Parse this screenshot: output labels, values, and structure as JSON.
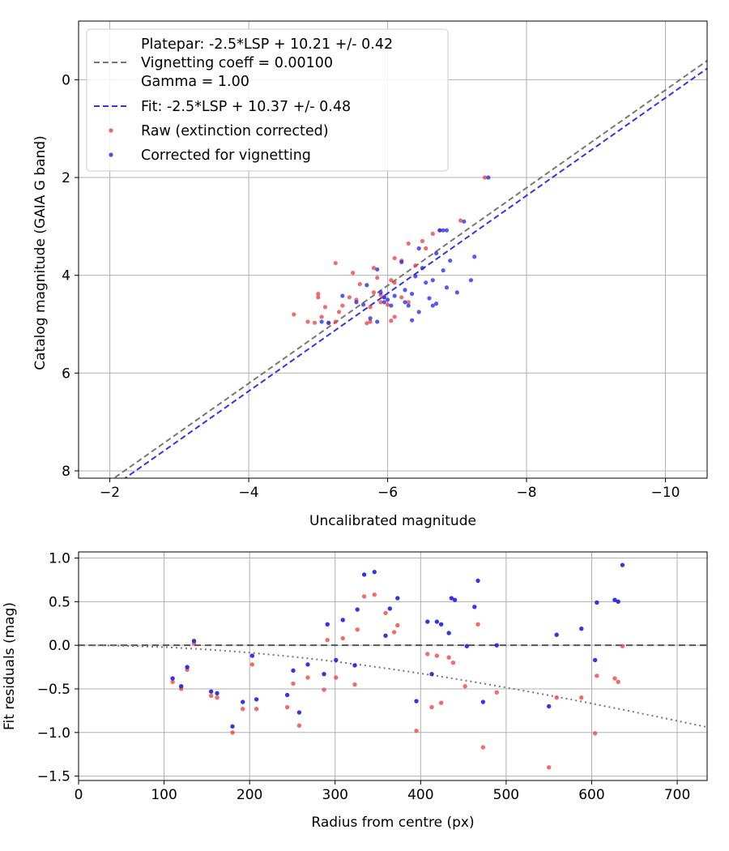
{
  "chart_data": [
    {
      "type": "scatter",
      "xlabel": "Uncalibrated magnitude",
      "ylabel": "Catalog magnitude (GAIA G band)",
      "xlim": [
        -1.55,
        -10.6
      ],
      "ylim": [
        8.15,
        -1.2
      ],
      "x_ticks": [
        -2,
        -4,
        -6,
        -8,
        -10
      ],
      "x_tick_labels": [
        "−2",
        "−4",
        "−6",
        "−8",
        "−10"
      ],
      "y_ticks": [
        0,
        2,
        4,
        6,
        8
      ],
      "y_tick_labels": [
        "0",
        "2",
        "4",
        "6",
        "8"
      ],
      "grid": true,
      "legend": {
        "placement": "top-left",
        "entries": [
          "Platepar: -2.5*LSP + 10.21 +/- 0.42",
          "Vignetting coeff = 0.00100",
          "Gamma = 1.00",
          "Fit: -2.5*LSP + 10.37 +/- 0.48",
          "Raw (extinction corrected)",
          "Corrected for vignetting"
        ]
      },
      "lines": [
        {
          "name": "Platepar",
          "style": "dashed",
          "color": "#777777",
          "intercept": 10.21,
          "slope": 1.0
        },
        {
          "name": "Fit",
          "style": "dashed",
          "color": "#3333e6",
          "intercept": 10.37,
          "slope": 1.0
        }
      ],
      "series": [
        {
          "name": "Raw (extinction corrected)",
          "color": "#ee3b3b",
          "points": [
            [
              -4.65,
              4.8
            ],
            [
              -4.95,
              4.97
            ],
            [
              -5.05,
              4.85
            ],
            [
              -5.1,
              4.65
            ],
            [
              -5.15,
              4.98
            ],
            [
              -5.25,
              4.95
            ],
            [
              -5.3,
              4.75
            ],
            [
              -5.35,
              4.62
            ],
            [
              -5.25,
              3.75
            ],
            [
              -5.5,
              3.95
            ],
            [
              -5.6,
              4.18
            ],
            [
              -5.45,
              4.45
            ],
            [
              -5.55,
              4.5
            ],
            [
              -5.7,
              4.98
            ],
            [
              -5.75,
              4.95
            ],
            [
              -5.75,
              4.65
            ],
            [
              -5.8,
              4.35
            ],
            [
              -5.9,
              4.4
            ],
            [
              -5.9,
              4.55
            ],
            [
              -5.95,
              4.45
            ],
            [
              -6.0,
              4.6
            ],
            [
              -5.85,
              4.05
            ],
            [
              -5.8,
              3.85
            ],
            [
              -6.05,
              4.1
            ],
            [
              -6.1,
              4.15
            ],
            [
              -6.1,
              4.85
            ],
            [
              -6.05,
              4.93
            ],
            [
              -6.2,
              3.7
            ],
            [
              -6.1,
              3.65
            ],
            [
              -6.2,
              4.45
            ],
            [
              -6.3,
              4.55
            ],
            [
              -6.3,
              3.35
            ],
            [
              -6.4,
              3.8
            ],
            [
              -6.55,
              3.45
            ],
            [
              -6.5,
              3.3
            ],
            [
              -6.65,
              3.15
            ],
            [
              -6.75,
              3.08
            ],
            [
              -7.05,
              2.88
            ],
            [
              -7.4,
              2.0
            ],
            [
              -5.0,
              4.45
            ],
            [
              -5.0,
              4.38
            ],
            [
              -4.85,
              4.95
            ]
          ]
        },
        {
          "name": "Corrected for vignetting",
          "color": "#2222ee",
          "points": [
            [
              -5.05,
              4.95
            ],
            [
              -5.15,
              4.97
            ],
            [
              -5.35,
              4.42
            ],
            [
              -5.55,
              4.55
            ],
            [
              -5.65,
              4.6
            ],
            [
              -5.75,
              4.88
            ],
            [
              -5.85,
              4.95
            ],
            [
              -5.85,
              3.88
            ],
            [
              -5.7,
              4.2
            ],
            [
              -5.9,
              4.35
            ],
            [
              -5.95,
              4.45
            ],
            [
              -6.0,
              4.5
            ],
            [
              -5.95,
              4.55
            ],
            [
              -6.05,
              4.62
            ],
            [
              -6.1,
              4.42
            ],
            [
              -6.2,
              3.73
            ],
            [
              -6.25,
              4.3
            ],
            [
              -6.25,
              4.55
            ],
            [
              -6.3,
              4.62
            ],
            [
              -6.35,
              4.38
            ],
            [
              -6.35,
              4.92
            ],
            [
              -6.4,
              4.02
            ],
            [
              -6.45,
              4.75
            ],
            [
              -6.5,
              3.85
            ],
            [
              -6.55,
              4.15
            ],
            [
              -6.6,
              4.47
            ],
            [
              -6.65,
              4.62
            ],
            [
              -6.7,
              4.58
            ],
            [
              -6.7,
              3.55
            ],
            [
              -6.75,
              3.08
            ],
            [
              -6.8,
              3.9
            ],
            [
              -6.8,
              3.08
            ],
            [
              -6.85,
              3.08
            ],
            [
              -6.85,
              4.25
            ],
            [
              -7.0,
              4.35
            ],
            [
              -7.1,
              2.9
            ],
            [
              -7.2,
              4.1
            ],
            [
              -7.25,
              3.62
            ],
            [
              -7.45,
              2.0
            ],
            [
              -6.45,
              3.45
            ],
            [
              -6.9,
              3.7
            ],
            [
              -6.65,
              4.1
            ]
          ]
        }
      ]
    },
    {
      "type": "scatter",
      "xlabel": "Radius from centre (px)",
      "ylabel": "Fit residuals (mag)",
      "xlim": [
        0,
        735
      ],
      "ylim": [
        -1.55,
        1.07
      ],
      "x_ticks": [
        0,
        100,
        200,
        300,
        400,
        500,
        600,
        700
      ],
      "x_tick_labels": [
        "0",
        "100",
        "200",
        "300",
        "400",
        "500",
        "600",
        "700"
      ],
      "y_ticks": [
        1.0,
        0.5,
        0.0,
        -0.5,
        -1.0,
        -1.5
      ],
      "y_tick_labels": [
        "1.0",
        "0.5",
        "0.0",
        "−0.5",
        "−1.0",
        "−1.5"
      ],
      "grid": true,
      "lines": [
        {
          "name": "zero",
          "style": "dashed",
          "color": "#555555",
          "y": 0.0
        },
        {
          "name": "vignetting",
          "style": "dotted",
          "color": "#777777",
          "coeff": 0.001
        }
      ],
      "series": [
        {
          "name": "Raw",
          "color": "#ee3b3b",
          "points": [
            [
              110,
              -0.42
            ],
            [
              120,
              -0.5
            ],
            [
              127,
              -0.28
            ],
            [
              135,
              0.02
            ],
            [
              155,
              -0.58
            ],
            [
              162,
              -0.6
            ],
            [
              180,
              -1.0
            ],
            [
              192,
              -0.73
            ],
            [
              203,
              -0.22
            ],
            [
              208,
              -0.73
            ],
            [
              244,
              -0.71
            ],
            [
              251,
              -0.44
            ],
            [
              258,
              -0.92
            ],
            [
              268,
              -0.37
            ],
            [
              287,
              -0.51
            ],
            [
              291,
              0.06
            ],
            [
              301,
              -0.37
            ],
            [
              309,
              0.08
            ],
            [
              323,
              -0.45
            ],
            [
              326,
              0.18
            ],
            [
              334,
              0.56
            ],
            [
              346,
              0.58
            ],
            [
              359,
              0.37
            ],
            [
              369,
              0.15
            ],
            [
              373,
              0.23
            ],
            [
              395,
              -0.98
            ],
            [
              408,
              -0.1
            ],
            [
              413,
              -0.71
            ],
            [
              419,
              -0.12
            ],
            [
              424,
              -0.66
            ],
            [
              433,
              -0.14
            ],
            [
              438,
              -0.2
            ],
            [
              452,
              -0.47
            ],
            [
              467,
              0.24
            ],
            [
              473,
              -1.17
            ],
            [
              489,
              -0.54
            ],
            [
              550,
              -1.4
            ],
            [
              559,
              -0.6
            ],
            [
              588,
              -0.6
            ],
            [
              604,
              -1.01
            ],
            [
              606,
              -0.35
            ],
            [
              627,
              -0.38
            ],
            [
              631,
              -0.42
            ],
            [
              636,
              -0.01
            ]
          ]
        },
        {
          "name": "Corrected",
          "color": "#1f1fe6",
          "points": [
            [
              110,
              -0.38
            ],
            [
              120,
              -0.47
            ],
            [
              127,
              -0.25
            ],
            [
              135,
              0.05
            ],
            [
              155,
              -0.53
            ],
            [
              162,
              -0.55
            ],
            [
              180,
              -0.93
            ],
            [
              192,
              -0.65
            ],
            [
              203,
              -0.12
            ],
            [
              208,
              -0.62
            ],
            [
              244,
              -0.57
            ],
            [
              251,
              -0.29
            ],
            [
              258,
              -0.77
            ],
            [
              268,
              -0.22
            ],
            [
              287,
              -0.33
            ],
            [
              291,
              0.24
            ],
            [
              301,
              -0.17
            ],
            [
              309,
              0.29
            ],
            [
              323,
              -0.23
            ],
            [
              326,
              0.41
            ],
            [
              334,
              0.81
            ],
            [
              346,
              0.84
            ],
            [
              359,
              0.11
            ],
            [
              364,
              0.42
            ],
            [
              373,
              0.54
            ],
            [
              395,
              -0.64
            ],
            [
              408,
              0.27
            ],
            [
              413,
              -0.33
            ],
            [
              419,
              0.27
            ],
            [
              424,
              0.24
            ],
            [
              433,
              0.14
            ],
            [
              436,
              0.54
            ],
            [
              440,
              0.52
            ],
            [
              454,
              -0.01
            ],
            [
              463,
              0.44
            ],
            [
              467,
              0.74
            ],
            [
              473,
              -0.65
            ],
            [
              489,
              0.0
            ],
            [
              550,
              -0.7
            ],
            [
              559,
              0.12
            ],
            [
              588,
              0.19
            ],
            [
              604,
              -0.17
            ],
            [
              606,
              0.49
            ],
            [
              627,
              0.52
            ],
            [
              631,
              0.5
            ],
            [
              636,
              0.92
            ]
          ]
        }
      ]
    }
  ]
}
